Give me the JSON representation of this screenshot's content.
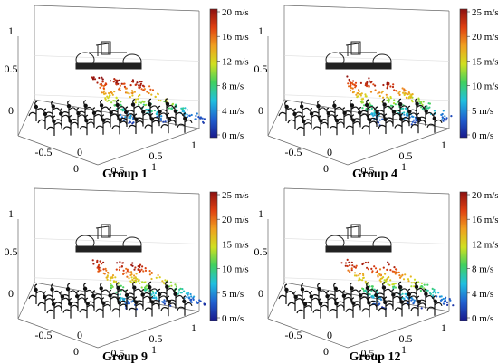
{
  "chart_data": [
    {
      "type": "scatter",
      "subtype": "3d-velocity-field",
      "caption": "Group 1",
      "z_ticks": [
        "0",
        "0.5",
        "1"
      ],
      "x_ticks": [
        "-0.5",
        "0",
        "0.5",
        "1"
      ],
      "colorbar": {
        "min": 0,
        "max": 20,
        "ticks": [
          "0 m/s",
          "4 m/s",
          "8 m/s",
          "12 m/s",
          "16 m/s",
          "20 m/s"
        ]
      },
      "colormap": [
        "#1a1a8c",
        "#2060d0",
        "#20c0e0",
        "#40d060",
        "#d0e020",
        "#f0a020",
        "#e04010",
        "#8c1010"
      ],
      "max_speed_near_nozzle": 20
    },
    {
      "type": "scatter",
      "subtype": "3d-velocity-field",
      "caption": "Group 4",
      "z_ticks": [
        "0",
        "0.5",
        "1"
      ],
      "x_ticks": [
        "-0.5",
        "0",
        "0.5",
        "1"
      ],
      "colorbar": {
        "min": 0,
        "max": 25,
        "ticks": [
          "0 m/s",
          "5 m/s",
          "10 m/s",
          "15 m/s",
          "20 m/s",
          "25 m/s"
        ]
      },
      "colormap": [
        "#1a1a8c",
        "#2060d0",
        "#20c0e0",
        "#40d060",
        "#d0e020",
        "#f0a020",
        "#e04010",
        "#8c1010"
      ],
      "max_speed_near_nozzle": 25
    },
    {
      "type": "scatter",
      "subtype": "3d-velocity-field",
      "caption": "Group 9",
      "z_ticks": [
        "0",
        "0.5",
        "1"
      ],
      "x_ticks": [
        "-0.5",
        "0",
        "0.5",
        "1"
      ],
      "colorbar": {
        "min": 0,
        "max": 25,
        "ticks": [
          "0 m/s",
          "5 m/s",
          "10 m/s",
          "15 m/s",
          "20 m/s",
          "25 m/s"
        ]
      },
      "colormap": [
        "#1a1a8c",
        "#2060d0",
        "#20c0e0",
        "#40d060",
        "#d0e020",
        "#f0a020",
        "#e04010",
        "#8c1010"
      ],
      "max_speed_near_nozzle": 25
    },
    {
      "type": "scatter",
      "subtype": "3d-velocity-field",
      "caption": "Group 12",
      "z_ticks": [
        "0",
        "0.5",
        "1"
      ],
      "x_ticks": [
        "-0.5",
        "0",
        "0.5",
        "1"
      ],
      "colorbar": {
        "min": 0,
        "max": 20,
        "ticks": [
          "0 m/s",
          "4 m/s",
          "8 m/s",
          "12 m/s",
          "16 m/s",
          "20 m/s"
        ]
      },
      "colormap": [
        "#1a1a8c",
        "#2060d0",
        "#20c0e0",
        "#40d060",
        "#d0e020",
        "#f0a020",
        "#e04010",
        "#8c1010"
      ],
      "max_speed_near_nozzle": 20
    }
  ]
}
